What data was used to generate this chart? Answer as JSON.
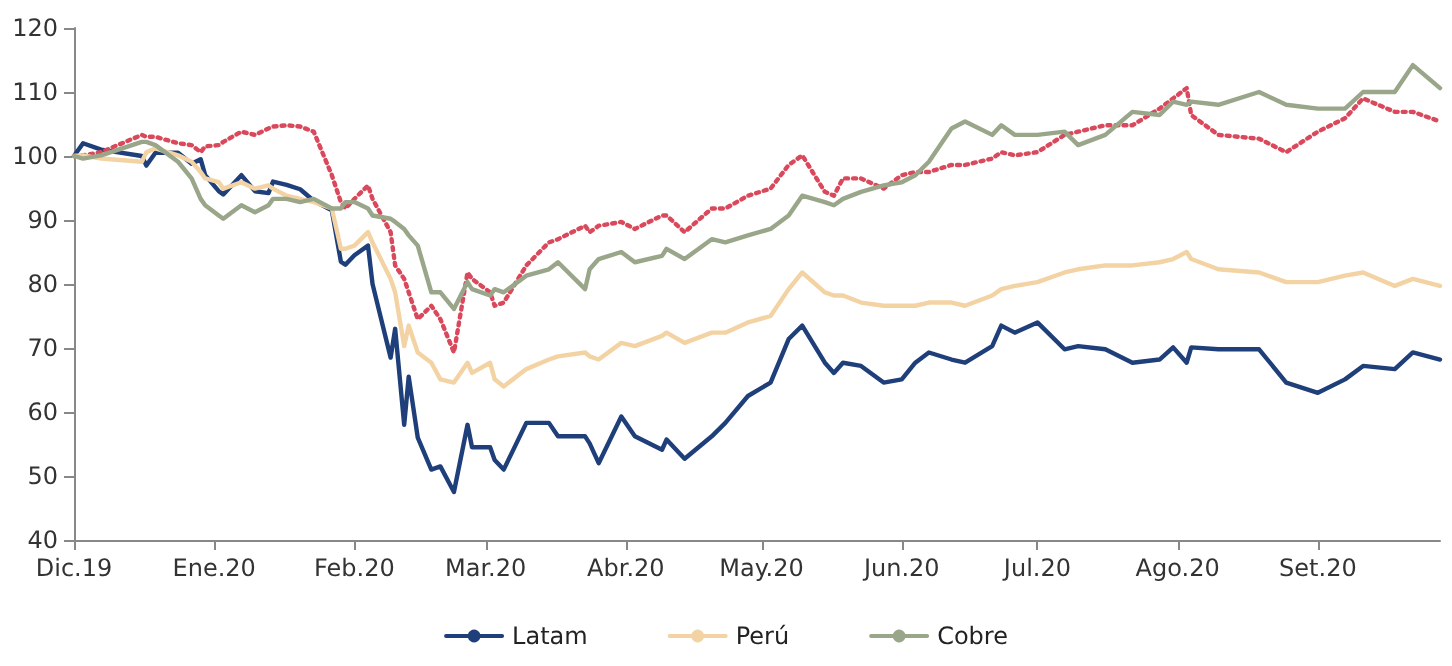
{
  "chart_data": {
    "type": "line",
    "x": [
      "2019-12-01",
      "2019-12-03",
      "2019-12-07",
      "2019-12-16",
      "2019-12-17",
      "2019-12-19",
      "2019-12-24",
      "2019-12-27",
      "2019-12-29",
      "2019-12-30",
      "2020-01-02",
      "2020-01-03",
      "2020-01-07",
      "2020-01-10",
      "2020-01-13",
      "2020-01-14",
      "2020-01-17",
      "2020-01-20",
      "2020-01-23",
      "2020-01-27",
      "2020-01-29",
      "2020-01-30",
      "2020-02-01",
      "2020-02-04",
      "2020-02-05",
      "2020-02-09",
      "2020-02-10",
      "2020-02-12",
      "2020-02-13",
      "2020-02-15",
      "2020-02-18",
      "2020-02-20",
      "2020-02-23",
      "2020-02-26",
      "2020-02-27",
      "2020-03-02",
      "2020-03-03",
      "2020-03-05",
      "2020-03-10",
      "2020-03-15",
      "2020-03-17",
      "2020-03-23",
      "2020-03-24",
      "2020-03-26",
      "2020-03-31",
      "2020-04-03",
      "2020-04-09",
      "2020-04-10",
      "2020-04-14",
      "2020-04-20",
      "2020-04-23",
      "2020-04-28",
      "2020-05-03",
      "2020-05-07",
      "2020-05-10",
      "2020-05-15",
      "2020-05-17",
      "2020-05-19",
      "2020-05-23",
      "2020-05-28",
      "2020-06-01",
      "2020-06-04",
      "2020-06-07",
      "2020-06-12",
      "2020-06-15",
      "2020-06-21",
      "2020-06-23",
      "2020-06-26",
      "2020-07-01",
      "2020-07-07",
      "2020-07-10",
      "2020-07-16",
      "2020-07-22",
      "2020-07-28",
      "2020-07-31",
      "2020-08-03",
      "2020-08-04",
      "2020-08-10",
      "2020-08-19",
      "2020-08-25",
      "2020-09-01",
      "2020-09-07",
      "2020-09-11",
      "2020-09-18",
      "2020-09-22",
      "2020-09-28"
    ],
    "series": [
      {
        "name": "Latam",
        "color": "#1f3f7a",
        "line_style": "solid",
        "values": [
          100,
          102,
          101,
          100,
          98.5,
          100.5,
          100.5,
          98.8,
          99.5,
          97,
          94.5,
          94,
          97,
          94.5,
          94.2,
          96,
          95.5,
          94.8,
          93,
          91.5,
          83.5,
          83,
          84.5,
          86,
          80,
          68.5,
          73,
          58,
          65.5,
          56,
          51,
          51.5,
          47.5,
          58,
          54.5,
          54.5,
          52.5,
          51,
          58.3,
          58.3,
          56.2,
          56.2,
          55.1,
          52,
          59.3,
          56.2,
          54.1,
          55.7,
          52.7,
          56.2,
          58.3,
          62.5,
          64.6,
          71.4,
          73.5,
          67.7,
          66.1,
          67.7,
          67.2,
          64.6,
          65.1,
          67.7,
          69.3,
          68.2,
          67.7,
          70.3,
          73.5,
          72.4,
          74,
          69.8,
          70.3,
          69.8,
          67.7,
          68.2,
          70.1,
          67.7,
          70.1,
          69.8,
          69.8,
          64.6,
          63,
          65.1,
          67.2,
          66.7,
          69.3,
          68.2
        ]
      },
      {
        "color": "#d9485b",
        "line_style": "dotted",
        "values": [
          100,
          100.1,
          100.6,
          103.3,
          103,
          103,
          102,
          101.7,
          100.6,
          101.5,
          101.7,
          102.2,
          103.8,
          103.3,
          104.3,
          104.6,
          104.8,
          104.6,
          103.8,
          97,
          92.8,
          91.8,
          93.3,
          95.4,
          93.3,
          88.1,
          82.9,
          80.8,
          78.7,
          74.5,
          76.6,
          74.5,
          69.3,
          81.8,
          80.8,
          78.7,
          76.6,
          77.1,
          82.9,
          86.5,
          87,
          89.1,
          88.1,
          89.1,
          89.7,
          88.6,
          90.7,
          90.7,
          88.1,
          91.8,
          91.8,
          93.8,
          94.9,
          98.6,
          100.1,
          94.4,
          93.8,
          96.5,
          96.5,
          94.9,
          97,
          97.5,
          97.5,
          98.6,
          98.6,
          99.6,
          100.6,
          100.1,
          100.6,
          103.3,
          103.8,
          104.8,
          104.8,
          107.4,
          109,
          110.6,
          106.4,
          103.3,
          102.7,
          100.6,
          103.8,
          105.9,
          109,
          106.9,
          106.9,
          105.4
        ]
      },
      {
        "name": "Perú",
        "color": "#f3d3a3",
        "line_style": "solid",
        "values": [
          100,
          100.1,
          99.6,
          99.1,
          100.6,
          101.2,
          100.1,
          99.1,
          97.5,
          96.5,
          95.9,
          94.9,
          95.9,
          94.9,
          95.4,
          94.9,
          93.8,
          93.3,
          92.8,
          91.8,
          85.5,
          85.5,
          86,
          88.1,
          86.5,
          80.8,
          78.7,
          70.3,
          73.5,
          69.3,
          67.7,
          65.1,
          64.6,
          67.7,
          66.1,
          67.7,
          65.1,
          64,
          66.7,
          68.2,
          68.7,
          69.3,
          68.7,
          68.2,
          70.8,
          70.3,
          71.9,
          72.4,
          70.8,
          72.4,
          72.4,
          74,
          75,
          79.2,
          81.8,
          78.7,
          78.2,
          78.2,
          77.1,
          76.6,
          76.6,
          76.6,
          77.1,
          77.1,
          76.6,
          78.2,
          79.2,
          79.7,
          80.3,
          81.8,
          82.3,
          82.9,
          82.9,
          83.4,
          83.9,
          85,
          83.9,
          82.3,
          81.8,
          80.3,
          80.3,
          81.3,
          81.8,
          79.7,
          80.8,
          79.7
        ]
      },
      {
        "name": "Cobre",
        "color": "#9aa68a",
        "line_style": "solid",
        "values": [
          100,
          99.6,
          100.1,
          102.2,
          102.2,
          101.7,
          99.1,
          96.5,
          93.3,
          92.3,
          90.7,
          90.2,
          92.3,
          91.2,
          92.3,
          93.3,
          93.3,
          92.8,
          93.3,
          91.8,
          91.8,
          92.8,
          92.8,
          91.8,
          90.7,
          90.2,
          89.7,
          88.6,
          87.6,
          86,
          78.7,
          78.7,
          76.1,
          80.3,
          79.2,
          78.2,
          79.2,
          78.7,
          81.3,
          82.3,
          83.4,
          79.2,
          82.3,
          83.9,
          85,
          83.4,
          84.4,
          85.5,
          83.9,
          87,
          86.5,
          87.6,
          88.6,
          90.7,
          93.8,
          92.8,
          92.3,
          93.3,
          94.4,
          95.4,
          95.9,
          97,
          99.1,
          104.3,
          105.4,
          103.3,
          104.8,
          103.3,
          103.3,
          103.8,
          101.7,
          103.3,
          106.9,
          106.4,
          108.5,
          108,
          108.5,
          108,
          110,
          108,
          107.4,
          107.4,
          110,
          110,
          114.2,
          110.6
        ]
      }
    ],
    "xlim": [
      "2019-12-01",
      "2020-09-28"
    ],
    "xticks": [
      {
        "value": "2019-12-01",
        "label": "Dic.19"
      },
      {
        "value": "2020-01-01",
        "label": "Ene.20"
      },
      {
        "value": "2020-02-01",
        "label": "Feb.20"
      },
      {
        "value": "2020-03-01",
        "label": "Mar.20"
      },
      {
        "value": "2020-04-01",
        "label": "Abr.20"
      },
      {
        "value": "2020-05-01",
        "label": "May.20"
      },
      {
        "value": "2020-06-01",
        "label": "Jun.20"
      },
      {
        "value": "2020-07-01",
        "label": "Jul.20"
      },
      {
        "value": "2020-08-01",
        "label": "Ago.20"
      },
      {
        "value": "2020-09-01",
        "label": "Set.20"
      }
    ],
    "ylim": [
      40,
      120
    ],
    "yticks": [
      40,
      50,
      60,
      70,
      80,
      90,
      100,
      110,
      120
    ],
    "grid": false,
    "legend": "bottom",
    "marker": "none"
  }
}
